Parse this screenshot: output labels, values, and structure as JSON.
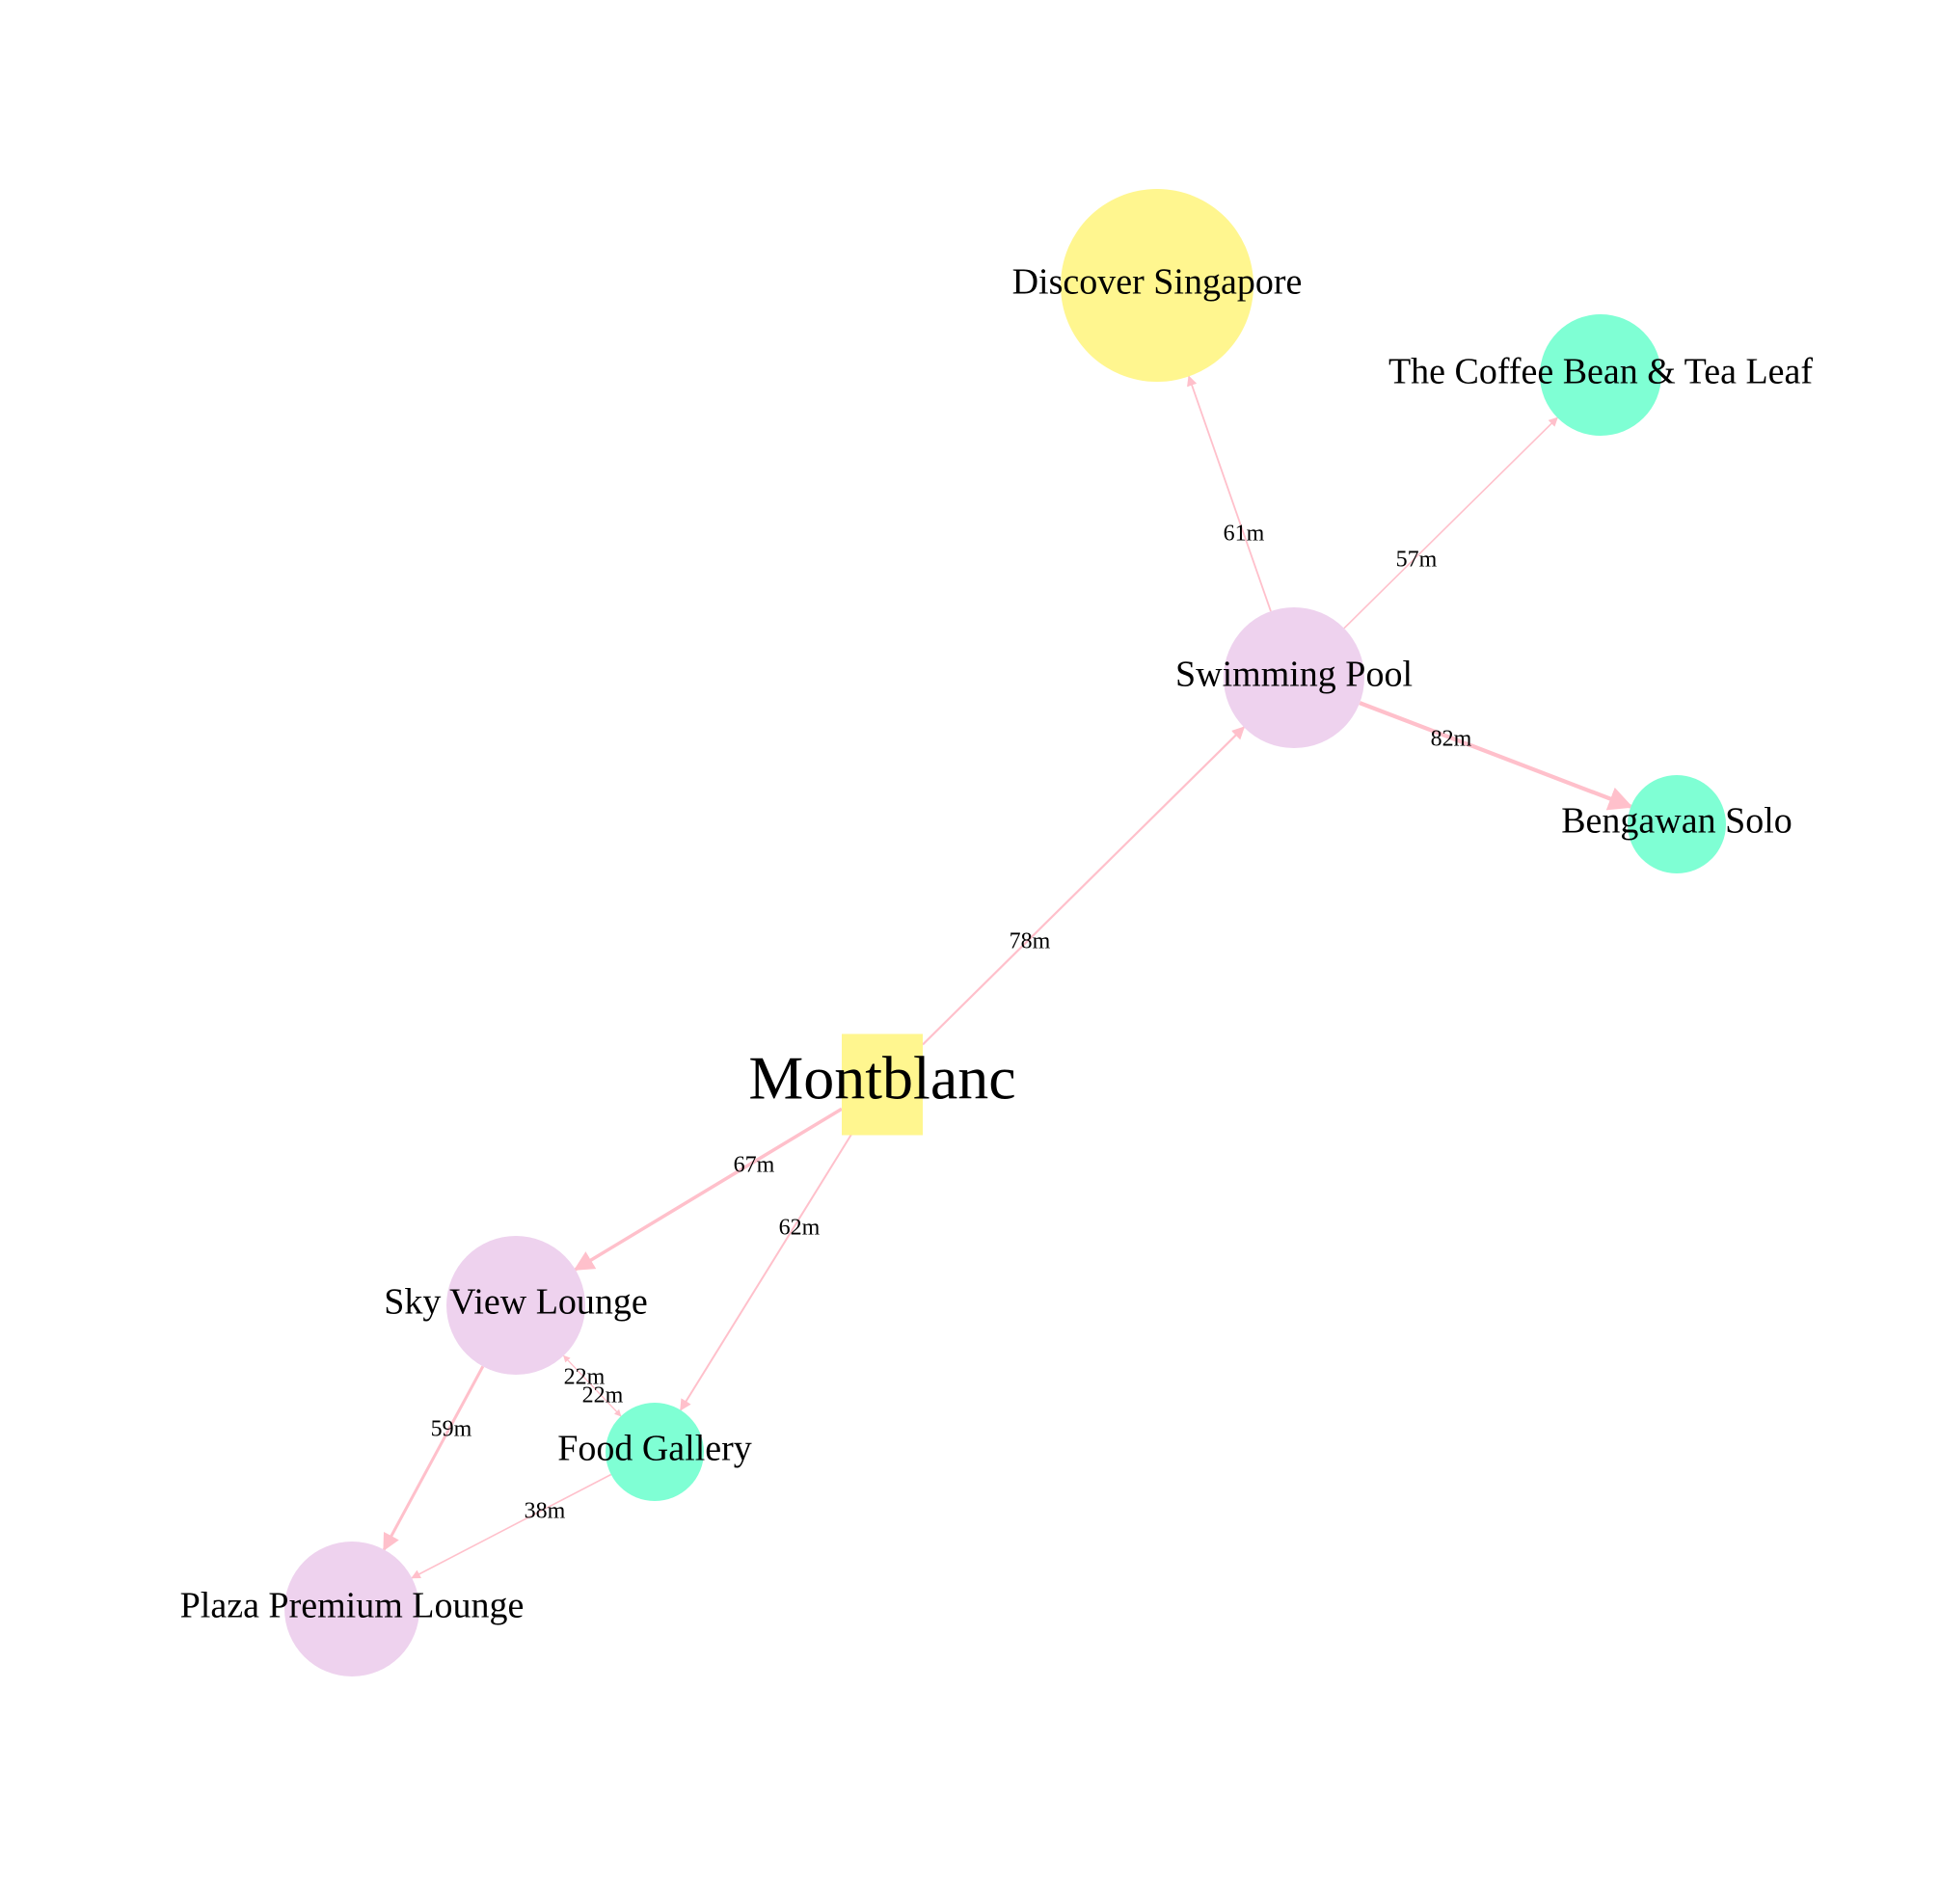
{
  "colors": {
    "edge": "#ffc0cb",
    "hub": "#fff68f",
    "attraction": "#fff68f",
    "lounge": "#eed2ee",
    "food": "#7fffd4",
    "text": "#000000",
    "background": "#ffffff"
  },
  "nodes": [
    {
      "id": "montblanc",
      "label": "Montblanc",
      "shape": "square",
      "color_key": "hub",
      "size": "large"
    },
    {
      "id": "discover-singapore",
      "label": "Discover Singapore",
      "shape": "circle",
      "color_key": "attraction",
      "size": "large"
    },
    {
      "id": "swimming-pool",
      "label": "Swimming Pool",
      "shape": "circle",
      "color_key": "lounge",
      "size": "medium"
    },
    {
      "id": "coffee-bean",
      "label": "The Coffee Bean & Tea Leaf",
      "shape": "circle",
      "color_key": "food",
      "size": "small"
    },
    {
      "id": "bengawan-solo",
      "label": "Bengawan Solo",
      "shape": "circle",
      "color_key": "food",
      "size": "small"
    },
    {
      "id": "sky-view-lounge",
      "label": "Sky View Lounge",
      "shape": "circle",
      "color_key": "lounge",
      "size": "medium"
    },
    {
      "id": "food-gallery",
      "label": "Food Gallery",
      "shape": "circle",
      "color_key": "food",
      "size": "small"
    },
    {
      "id": "plaza-premium-lounge",
      "label": "Plaza Premium Lounge",
      "shape": "circle",
      "color_key": "lounge",
      "size": "medium"
    }
  ],
  "edges": [
    {
      "from": "montblanc",
      "to": "swimming-pool",
      "label": "78m"
    },
    {
      "from": "swimming-pool",
      "to": "discover-singapore",
      "label": "61m"
    },
    {
      "from": "swimming-pool",
      "to": "coffee-bean",
      "label": "57m"
    },
    {
      "from": "swimming-pool",
      "to": "bengawan-solo",
      "label": "82m"
    },
    {
      "from": "montblanc",
      "to": "sky-view-lounge",
      "label": "67m"
    },
    {
      "from": "montblanc",
      "to": "food-gallery",
      "label": "62m"
    },
    {
      "from": "sky-view-lounge",
      "to": "food-gallery",
      "label": "22m"
    },
    {
      "from": "food-gallery",
      "to": "sky-view-lounge",
      "label": "22m"
    },
    {
      "from": "sky-view-lounge",
      "to": "plaza-premium-lounge",
      "label": "59m"
    },
    {
      "from": "food-gallery",
      "to": "plaza-premium-lounge",
      "label": "38m"
    }
  ]
}
